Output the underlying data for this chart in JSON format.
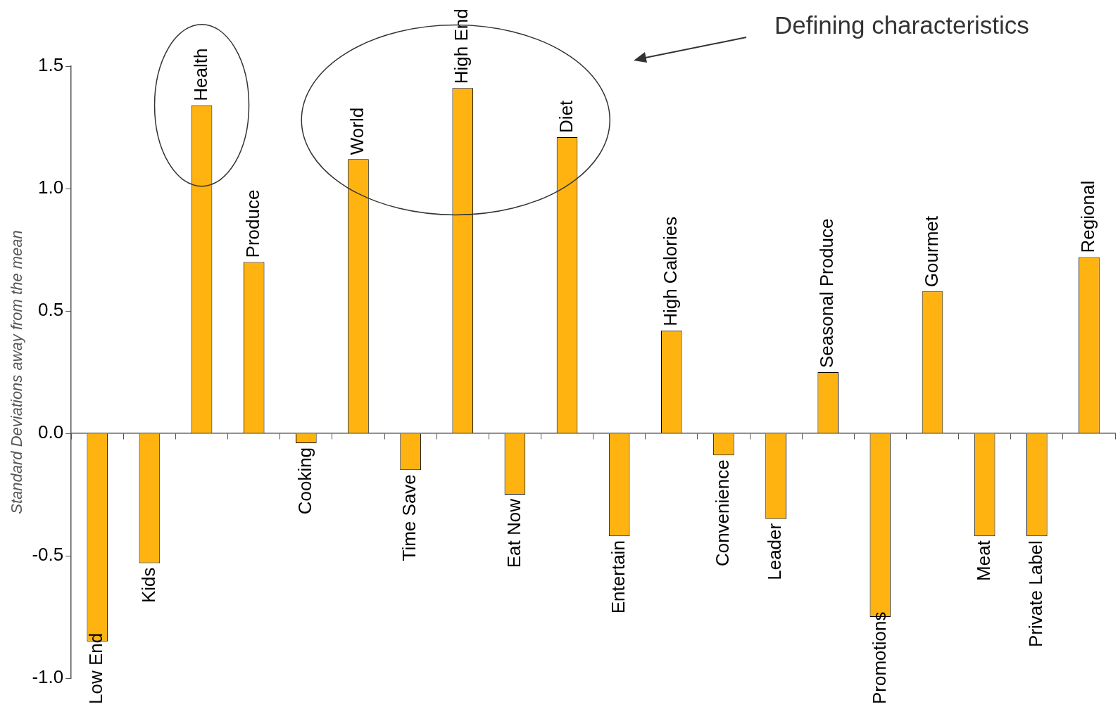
{
  "chart_data": {
    "type": "bar",
    "ylabel": "Standard Deviations away from the mean",
    "categories": [
      "Low End",
      "Kids",
      "Health",
      "Produce",
      "Cooking",
      "World",
      "Time Save",
      "High End",
      "Eat Now",
      "Diet",
      "Entertain",
      "High Calories",
      "Convenience",
      "Leader",
      "Seasonal Produce",
      "Promotions",
      "Gourmet",
      "Meat",
      "Private Label",
      "Regional"
    ],
    "values": [
      -0.85,
      -0.53,
      1.34,
      0.7,
      -0.04,
      1.12,
      -0.15,
      1.41,
      -0.25,
      1.21,
      -0.42,
      0.42,
      -0.09,
      -0.35,
      0.25,
      -0.75,
      0.58,
      -0.42,
      -0.42,
      0.72
    ],
    "color": "#ffb310",
    "ylim": [
      -1,
      1.5
    ],
    "yticks": [
      {
        "value": -1,
        "label": "-1.0"
      },
      {
        "value": -0.5,
        "label": "-0.5"
      },
      {
        "value": 0,
        "label": "0.0"
      },
      {
        "value": 0.5,
        "label": "0.5"
      },
      {
        "value": 1,
        "label": "1.0"
      },
      {
        "value": 1.5,
        "label": "1.5"
      }
    ],
    "grid": false,
    "annotations": [
      "Defining characteristics"
    ]
  }
}
